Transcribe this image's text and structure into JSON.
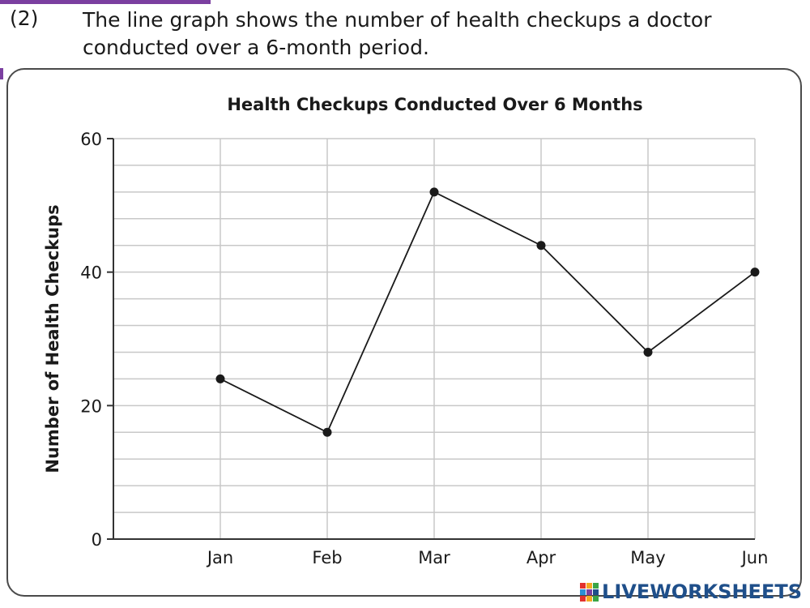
{
  "question": {
    "number": "(2)",
    "text": "The line graph shows the number of health checkups a doctor conducted over a 6-month period."
  },
  "chart_data": {
    "type": "line",
    "title": "Health Checkups Conducted Over 6 Months",
    "xlabel": "",
    "ylabel": "Number of Health Checkups",
    "categories": [
      "Jan",
      "Feb",
      "Mar",
      "Apr",
      "May",
      "Jun"
    ],
    "series": [
      {
        "values": [
          24,
          16,
          52,
          44,
          28,
          40
        ]
      }
    ],
    "ylim": [
      0,
      60
    ],
    "yticks": [
      0,
      20,
      40,
      60
    ],
    "minor_gridline_step": 4,
    "grid": true,
    "legend": "none",
    "colors": {
      "line": "#1a1a1a",
      "grid": "#c8c8c8",
      "axis": "#333333"
    }
  },
  "watermark": {
    "text": "LIVEWORKSHEETS",
    "colors": [
      "#e2312d",
      "#f6a821",
      "#3aa546",
      "#2b8fd6",
      "#7b3fa0",
      "#1f4f8a"
    ]
  }
}
